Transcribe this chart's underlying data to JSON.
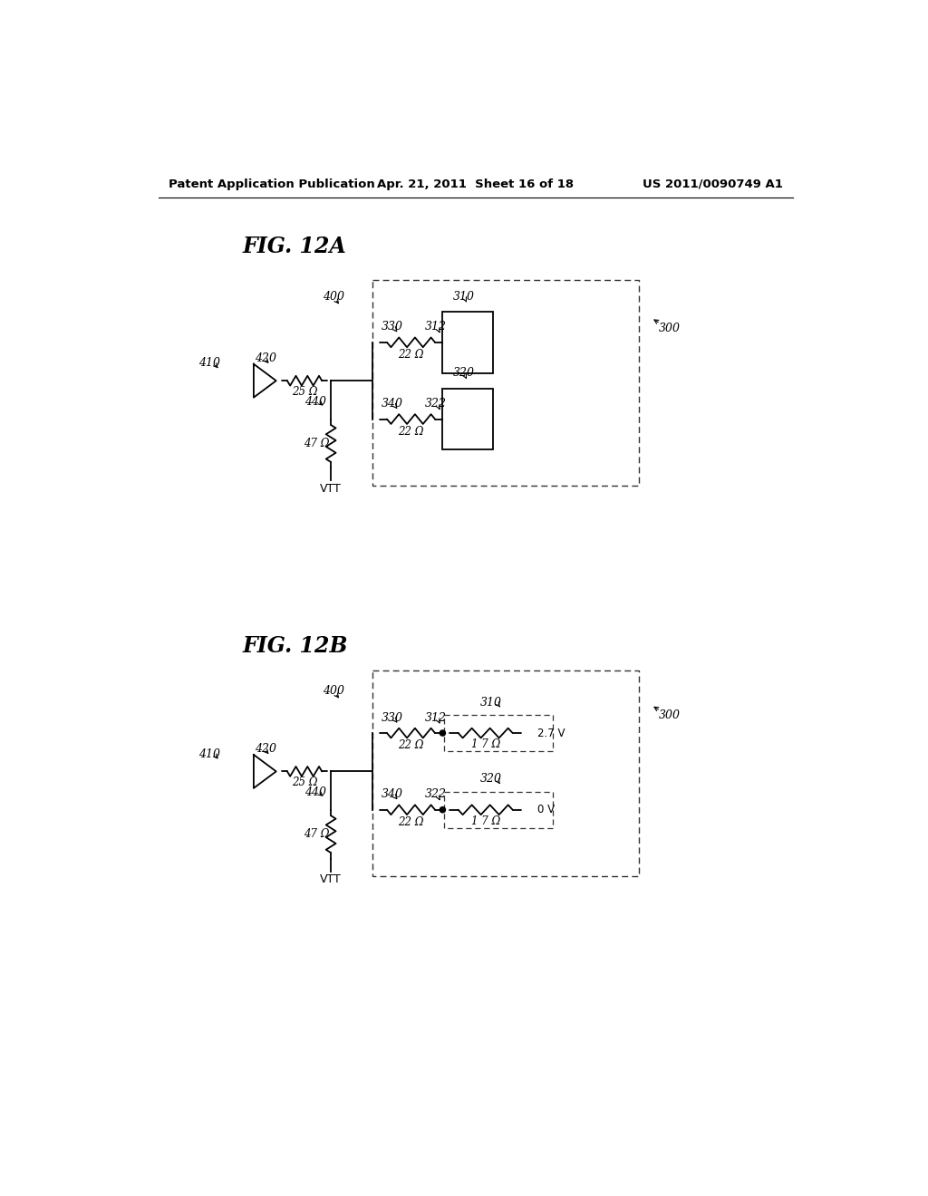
{
  "background_color": "#ffffff",
  "header_left": "Patent Application Publication",
  "header_center": "Apr. 21, 2011  Sheet 16 of 18",
  "header_right": "US 2011/0090749 A1",
  "fig12a_title": "FIG. 12A",
  "fig12b_title": "FIG. 12B",
  "line_color": "#000000",
  "text_color": "#000000"
}
